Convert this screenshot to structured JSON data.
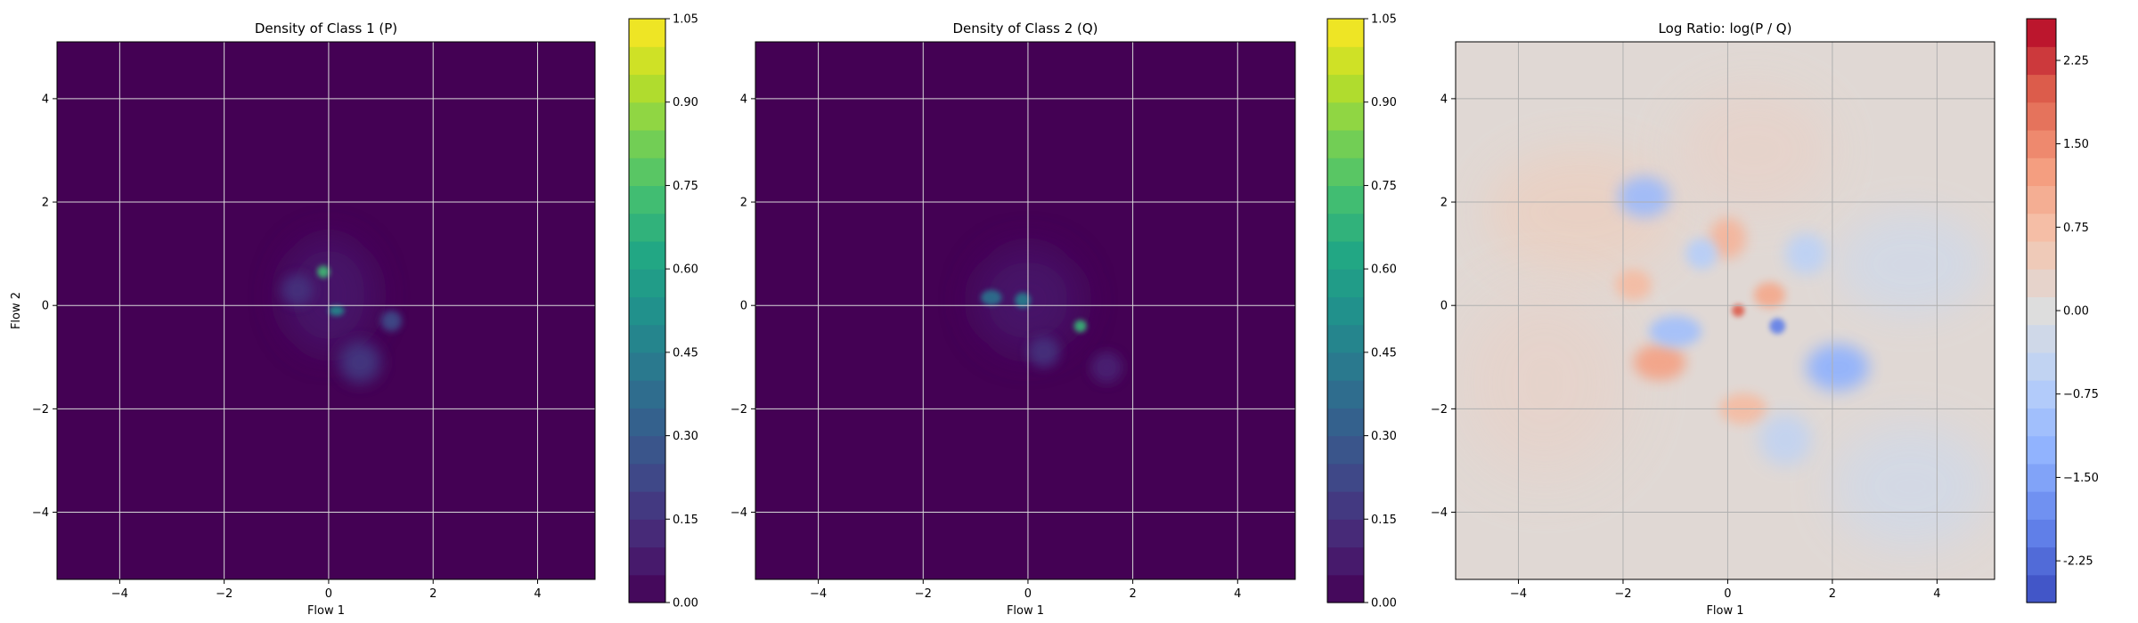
{
  "chart_data": [
    {
      "type": "heatmap",
      "title": "Density of Class 1 (P)",
      "xlabel": "Flow 1",
      "ylabel": "Flow 2",
      "xlim": [
        -5.2,
        5.1
      ],
      "ylim": [
        -5.3,
        5.1
      ],
      "xticks": [
        -4,
        -2,
        0,
        2,
        4
      ],
      "yticks": [
        -4,
        -2,
        0,
        2,
        4
      ],
      "grid": true,
      "colormap": "viridis",
      "background_color": "#440154",
      "colorbar": {
        "min": 0.0,
        "max": 1.05,
        "levels": 21,
        "ticks": [
          "0.00",
          "0.15",
          "0.30",
          "0.45",
          "0.60",
          "0.75",
          "0.90",
          "1.05"
        ]
      },
      "blobs": [
        {
          "x": 0.0,
          "y": 0.2,
          "sx": 0.9,
          "sy": 1.1,
          "level": 0.07
        },
        {
          "x": -0.1,
          "y": 0.65,
          "sx": 0.12,
          "sy": 0.12,
          "level": 0.72
        },
        {
          "x": 0.15,
          "y": -0.1,
          "sx": 0.15,
          "sy": 0.1,
          "level": 0.5
        },
        {
          "x": 1.2,
          "y": -0.3,
          "sx": 0.2,
          "sy": 0.2,
          "level": 0.25
        },
        {
          "x": 0.6,
          "y": -1.1,
          "sx": 0.4,
          "sy": 0.4,
          "level": 0.18
        },
        {
          "x": -0.6,
          "y": 0.3,
          "sx": 0.3,
          "sy": 0.3,
          "level": 0.15
        }
      ]
    },
    {
      "type": "heatmap",
      "title": "Density of Class 2 (Q)",
      "xlabel": "Flow 1",
      "ylabel": "",
      "xlim": [
        -5.2,
        5.1
      ],
      "ylim": [
        -5.3,
        5.1
      ],
      "xticks": [
        -4,
        -2,
        0,
        2,
        4
      ],
      "yticks": [
        -4,
        -2,
        0,
        2,
        4
      ],
      "grid": true,
      "colormap": "viridis",
      "background_color": "#440154",
      "colorbar": {
        "min": 0.0,
        "max": 1.05,
        "levels": 21,
        "ticks": [
          "0.00",
          "0.15",
          "0.30",
          "0.45",
          "0.60",
          "0.75",
          "0.90",
          "1.05"
        ]
      },
      "blobs": [
        {
          "x": 0.0,
          "y": 0.1,
          "sx": 1.0,
          "sy": 1.0,
          "level": 0.07
        },
        {
          "x": 1.0,
          "y": -0.4,
          "sx": 0.12,
          "sy": 0.12,
          "level": 0.7
        },
        {
          "x": -0.7,
          "y": 0.15,
          "sx": 0.2,
          "sy": 0.15,
          "level": 0.4
        },
        {
          "x": -0.1,
          "y": 0.1,
          "sx": 0.15,
          "sy": 0.15,
          "level": 0.45
        },
        {
          "x": 0.3,
          "y": -0.9,
          "sx": 0.3,
          "sy": 0.3,
          "level": 0.15
        },
        {
          "x": 1.5,
          "y": -1.2,
          "sx": 0.3,
          "sy": 0.3,
          "level": 0.1
        }
      ]
    },
    {
      "type": "heatmap",
      "title": "Log Ratio: log(P / Q)",
      "xlabel": "Flow 1",
      "ylabel": "",
      "xlim": [
        -5.2,
        5.1
      ],
      "ylim": [
        -5.3,
        5.1
      ],
      "xticks": [
        -4,
        -2,
        0,
        2,
        4
      ],
      "yticks": [
        -4,
        -2,
        0,
        2,
        4
      ],
      "grid": true,
      "colormap": "coolwarm",
      "background_color": "#e0d8d4",
      "colorbar": {
        "min": -2.625,
        "max": 2.625,
        "levels": 21,
        "ticks": [
          "-2.25",
          "−1.50",
          "−0.75",
          "0.00",
          "0.75",
          "1.50",
          "2.25"
        ]
      },
      "blobs": [
        {
          "x": -2.8,
          "y": 1.8,
          "sx": 1.8,
          "sy": 1.2,
          "level": 0.35
        },
        {
          "x": -3.5,
          "y": -1.5,
          "sx": 1.6,
          "sy": 1.8,
          "level": 0.25
        },
        {
          "x": 0.5,
          "y": 3.0,
          "sx": 1.5,
          "sy": 1.2,
          "level": 0.25
        },
        {
          "x": 3.5,
          "y": -3.5,
          "sx": 1.5,
          "sy": 1.2,
          "level": -0.2
        },
        {
          "x": 3.5,
          "y": 0.8,
          "sx": 1.4,
          "sy": 1.0,
          "level": -0.2
        },
        {
          "x": -1.6,
          "y": 2.1,
          "sx": 0.5,
          "sy": 0.4,
          "level": -1.1
        },
        {
          "x": -1.3,
          "y": -1.1,
          "sx": 0.5,
          "sy": 0.35,
          "level": 1.2
        },
        {
          "x": 0.0,
          "y": 1.3,
          "sx": 0.35,
          "sy": 0.4,
          "level": 0.9
        },
        {
          "x": 0.8,
          "y": 0.2,
          "sx": 0.3,
          "sy": 0.25,
          "level": 1.1
        },
        {
          "x": 0.2,
          "y": -0.1,
          "sx": 0.12,
          "sy": 0.12,
          "level": 2.0
        },
        {
          "x": 0.95,
          "y": -0.4,
          "sx": 0.15,
          "sy": 0.15,
          "level": -2.0
        },
        {
          "x": 2.1,
          "y": -1.2,
          "sx": 0.6,
          "sy": 0.45,
          "level": -1.3
        },
        {
          "x": -1.0,
          "y": -0.5,
          "sx": 0.5,
          "sy": 0.3,
          "level": -1.0
        },
        {
          "x": 0.3,
          "y": -2.0,
          "sx": 0.45,
          "sy": 0.3,
          "level": 0.8
        },
        {
          "x": -1.8,
          "y": 0.4,
          "sx": 0.35,
          "sy": 0.3,
          "level": 0.8
        },
        {
          "x": 1.5,
          "y": 1.0,
          "sx": 0.4,
          "sy": 0.4,
          "level": -0.6
        },
        {
          "x": -0.5,
          "y": 1.0,
          "sx": 0.3,
          "sy": 0.3,
          "level": -0.7
        },
        {
          "x": 1.1,
          "y": -2.6,
          "sx": 0.5,
          "sy": 0.5,
          "level": -0.5
        }
      ]
    }
  ]
}
